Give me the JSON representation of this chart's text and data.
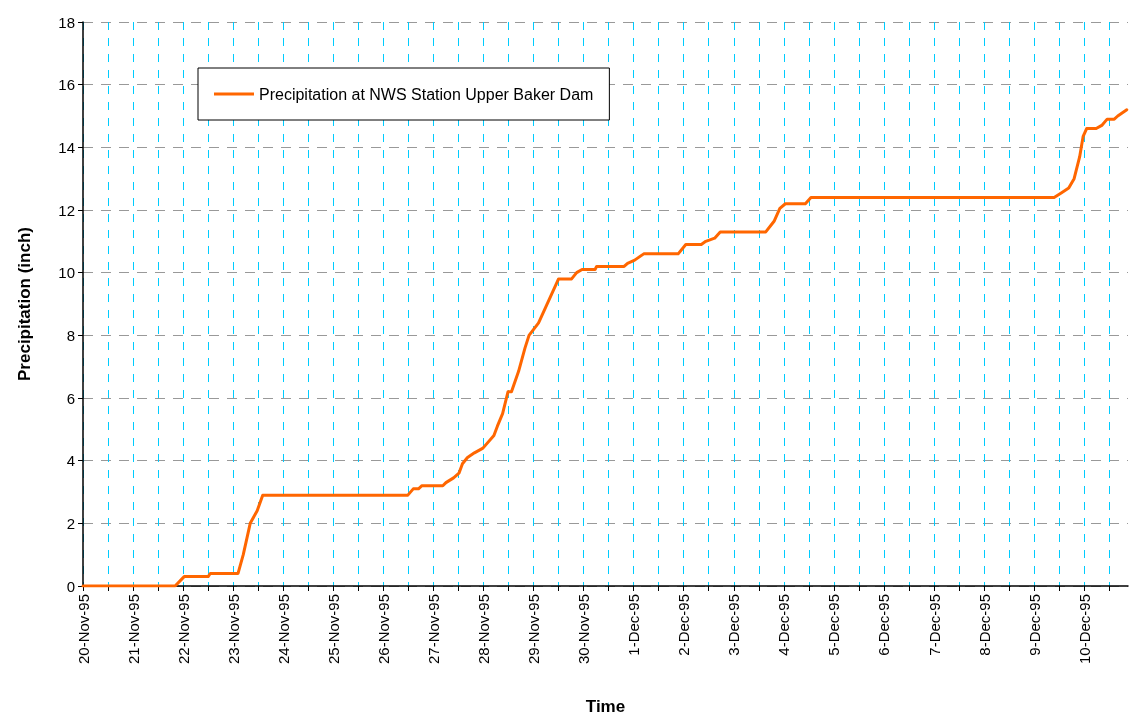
{
  "chart_data": {
    "type": "line",
    "xlabel": "Time",
    "ylabel": "Precipitation (inch)",
    "xlim": [
      "1995-11-20T00:00",
      "1995-12-10T21:00"
    ],
    "xticks": [
      {
        "value": "1995-11-20T00:00",
        "label": "20-Nov-95"
      },
      {
        "value": "1995-11-20T12:00",
        "label": null
      },
      {
        "value": "1995-11-21T00:00",
        "label": "21-Nov-95"
      },
      {
        "value": "1995-11-21T12:00",
        "label": null
      },
      {
        "value": "1995-11-22T00:00",
        "label": "22-Nov-95"
      },
      {
        "value": "1995-11-22T12:00",
        "label": null
      },
      {
        "value": "1995-11-23T00:00",
        "label": "23-Nov-95"
      },
      {
        "value": "1995-11-23T12:00",
        "label": null
      },
      {
        "value": "1995-11-24T00:00",
        "label": "24-Nov-95"
      },
      {
        "value": "1995-11-24T12:00",
        "label": null
      },
      {
        "value": "1995-11-25T00:00",
        "label": "25-Nov-95"
      },
      {
        "value": "1995-11-25T12:00",
        "label": null
      },
      {
        "value": "1995-11-26T00:00",
        "label": "26-Nov-95"
      },
      {
        "value": "1995-11-26T12:00",
        "label": null
      },
      {
        "value": "1995-11-27T00:00",
        "label": "27-Nov-95"
      },
      {
        "value": "1995-11-27T12:00",
        "label": null
      },
      {
        "value": "1995-11-28T00:00",
        "label": "28-Nov-95"
      },
      {
        "value": "1995-11-28T12:00",
        "label": null
      },
      {
        "value": "1995-11-29T00:00",
        "label": "29-Nov-95"
      },
      {
        "value": "1995-11-29T12:00",
        "label": null
      },
      {
        "value": "1995-11-30T00:00",
        "label": "30-Nov-95"
      },
      {
        "value": "1995-11-30T12:00",
        "label": null
      },
      {
        "value": "1995-12-01T00:00",
        "label": "1-Dec-95"
      },
      {
        "value": "1995-12-01T12:00",
        "label": null
      },
      {
        "value": "1995-12-02T00:00",
        "label": "2-Dec-95"
      },
      {
        "value": "1995-12-02T12:00",
        "label": null
      },
      {
        "value": "1995-12-03T00:00",
        "label": "3-Dec-95"
      },
      {
        "value": "1995-12-03T12:00",
        "label": null
      },
      {
        "value": "1995-12-04T00:00",
        "label": "4-Dec-95"
      },
      {
        "value": "1995-12-04T12:00",
        "label": null
      },
      {
        "value": "1995-12-05T00:00",
        "label": "5-Dec-95"
      },
      {
        "value": "1995-12-05T12:00",
        "label": null
      },
      {
        "value": "1995-12-06T00:00",
        "label": "6-Dec-95"
      },
      {
        "value": "1995-12-06T12:00",
        "label": null
      },
      {
        "value": "1995-12-07T00:00",
        "label": "7-Dec-95"
      },
      {
        "value": "1995-12-07T12:00",
        "label": null
      },
      {
        "value": "1995-12-08T00:00",
        "label": "8-Dec-95"
      },
      {
        "value": "1995-12-08T12:00",
        "label": null
      },
      {
        "value": "1995-12-09T00:00",
        "label": "9-Dec-95"
      },
      {
        "value": "1995-12-09T12:00",
        "label": null
      },
      {
        "value": "1995-12-10T00:00",
        "label": "10-Dec-95"
      },
      {
        "value": "1995-12-10T12:00",
        "label": null
      }
    ],
    "ylim": [
      0,
      18
    ],
    "yticks": [
      0,
      2,
      4,
      6,
      8,
      10,
      12,
      14,
      16,
      18
    ],
    "grid": true,
    "legend": "top left",
    "marker": "none",
    "line_style": "solid",
    "series": [
      {
        "name": "Precipitation at NWS Station Upper Baker Dam",
        "color": "#ff6600",
        "x": [
          "1995-11-20T00:00",
          "1995-11-21T20:10",
          "1995-11-22T00:30",
          "1995-11-22T12:00",
          "1995-11-22T13:00",
          "1995-11-23T02:20",
          "1995-11-23T04:50",
          "1995-11-23T08:10",
          "1995-11-23T11:30",
          "1995-11-23T14:10",
          "1995-11-26T11:45",
          "1995-11-26T14:20",
          "1995-11-26T16:50",
          "1995-11-26T18:30",
          "1995-11-27T04:30",
          "1995-11-27T06:00",
          "1995-11-27T09:40",
          "1995-11-27T12:15",
          "1995-11-27T13:55",
          "1995-11-27T16:20",
          "1995-11-27T19:40",
          "1995-11-27T23:45",
          "1995-11-28T05:00",
          "1995-11-28T06:40",
          "1995-11-28T09:10",
          "1995-11-28T11:45",
          "1995-11-28T13:25",
          "1995-11-28T16:50",
          "1995-11-28T19:55",
          "1995-11-28T21:50",
          "1995-11-29T02:25",
          "1995-11-29T12:00",
          "1995-11-29T18:15",
          "1995-11-29T20:40",
          "1995-11-29T23:15",
          "1995-11-30T05:30",
          "1995-11-30T06:15",
          "1995-11-30T19:25",
          "1995-11-30T21:05",
          "1995-12-01T00:30",
          "1995-12-01T04:50",
          "1995-12-01T21:20",
          "1995-12-02T01:00",
          "1995-12-02T08:25",
          "1995-12-02T10:35",
          "1995-12-02T14:50",
          "1995-12-02T17:30",
          "1995-12-03T15:20",
          "1995-12-03T19:25",
          "1995-12-03T22:05",
          "1995-12-04T00:45",
          "1995-12-04T10:20",
          "1995-12-04T13:00",
          "1995-12-09T09:35",
          "1995-12-09T13:10",
          "1995-12-09T16:35",
          "1995-12-09T19:10",
          "1995-12-09T21:50",
          "1995-12-09T23:30",
          "1995-12-10T01:10",
          "1995-12-10T05:45",
          "1995-12-10T08:25",
          "1995-12-10T11:00",
          "1995-12-10T14:25",
          "1995-12-10T16:05",
          "1995-12-10T20:25"
        ],
        "values": [
          0,
          0,
          0.3,
          0.3,
          0.4,
          0.4,
          1.0,
          2.0,
          2.4,
          2.9,
          2.9,
          3.1,
          3.1,
          3.2,
          3.2,
          3.3,
          3.45,
          3.6,
          3.9,
          4.1,
          4.25,
          4.4,
          4.8,
          5.1,
          5.5,
          6.2,
          6.2,
          6.85,
          7.6,
          8.0,
          8.4,
          9.8,
          9.8,
          10.0,
          10.1,
          10.1,
          10.2,
          10.2,
          10.3,
          10.4,
          10.6,
          10.6,
          10.9,
          10.9,
          11.0,
          11.1,
          11.3,
          11.3,
          11.65,
          12.05,
          12.2,
          12.2,
          12.4,
          12.4,
          12.55,
          12.7,
          13.0,
          13.7,
          14.35,
          14.6,
          14.6,
          14.7,
          14.9,
          14.9,
          15.0,
          15.2
        ]
      }
    ]
  }
}
